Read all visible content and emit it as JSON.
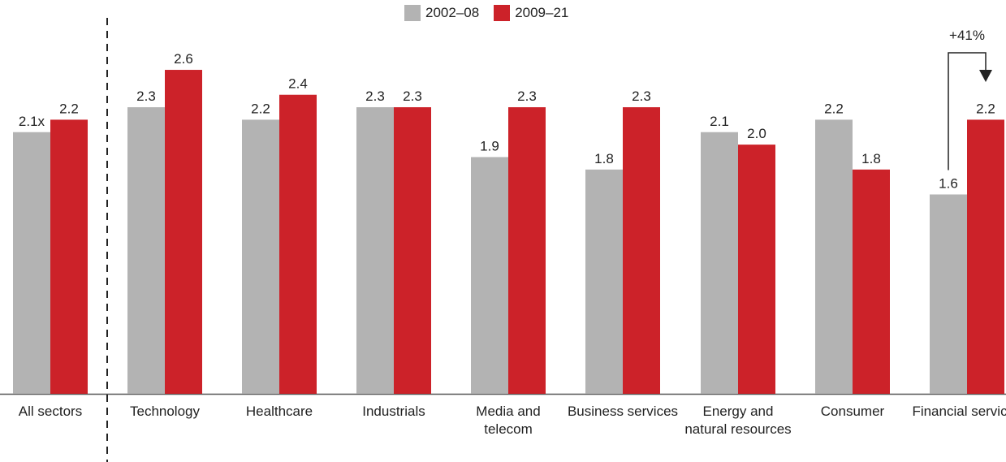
{
  "colors": {
    "series1": "#b3b3b3",
    "series2": "#cc2229",
    "axis": "#555555",
    "text": "#222222"
  },
  "legend": {
    "items": [
      {
        "label": "2002–08",
        "color": "#b3b3b3"
      },
      {
        "label": "2009–21",
        "color": "#cc2229"
      }
    ]
  },
  "chart_data": {
    "type": "bar",
    "categories": [
      "All sectors",
      "Technology",
      "Healthcare",
      "Industrials",
      "Media and telecom",
      "Business services",
      "Energy and natural resources",
      "Consumer",
      "Financial services"
    ],
    "series": [
      {
        "name": "2002–08",
        "values": [
          2.1,
          2.3,
          2.2,
          2.3,
          1.9,
          1.8,
          2.1,
          2.2,
          1.6
        ],
        "labels": [
          "2.1x",
          "2.3",
          "2.2",
          "2.3",
          "1.9",
          "1.8",
          "2.1",
          "2.2",
          "1.6"
        ]
      },
      {
        "name": "2009–21",
        "values": [
          2.2,
          2.6,
          2.4,
          2.3,
          2.3,
          2.3,
          2.0,
          1.8,
          2.2
        ],
        "labels": [
          "2.2",
          "2.6",
          "2.4",
          "2.3",
          "2.3",
          "2.3",
          "2.0",
          "1.8",
          "2.2"
        ]
      }
    ],
    "ylim": [
      0,
      2.9
    ],
    "grid": false,
    "legend_position": "top-center",
    "annotations": [
      {
        "text": "+41%",
        "category": "Financial services"
      }
    ],
    "separator_after": "All sectors"
  }
}
